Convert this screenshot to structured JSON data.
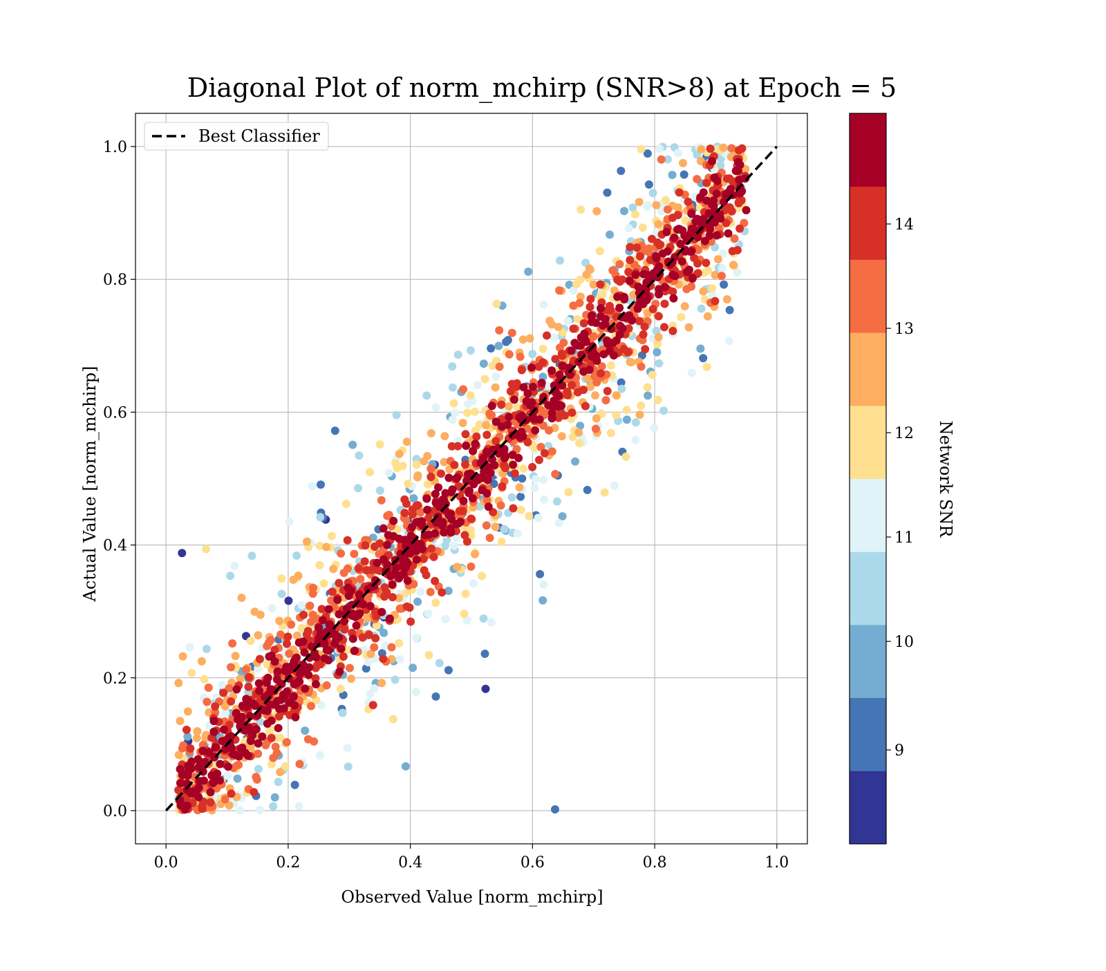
{
  "chart_data": {
    "type": "scatter",
    "title": "Diagonal Plot of norm_mchirp (SNR>8) at Epoch = 5",
    "xlabel": "Observed Value [norm_mchirp]",
    "ylabel": "Actual Value [norm_mchirp]",
    "xlim": [
      -0.05,
      1.05
    ],
    "ylim": [
      -0.05,
      1.05
    ],
    "xticks": [
      "0.0",
      "0.2",
      "0.4",
      "0.6",
      "0.8",
      "1.0"
    ],
    "yticks": [
      "0.0",
      "0.2",
      "0.4",
      "0.6",
      "0.8",
      "1.0"
    ],
    "grid": true,
    "legend": {
      "position": "top-left",
      "entries": [
        {
          "label": "Best Classifier",
          "style": "dashed",
          "color": "#000000"
        }
      ]
    },
    "reference_line": {
      "name": "Best Classifier",
      "x": [
        0.0,
        1.0
      ],
      "y": [
        0.0,
        1.0
      ]
    },
    "colorbar": {
      "label": "Network SNR",
      "range": [
        8,
        15
      ],
      "ticks": [
        "9",
        "10",
        "11",
        "12",
        "13",
        "14"
      ],
      "colors": [
        "#313695",
        "#4575b4",
        "#74add1",
        "#abd9e9",
        "#e0f3f8",
        "#fee090",
        "#fdae61",
        "#f46d43",
        "#d73027",
        "#a50026"
      ]
    },
    "series": [
      {
        "description_values": "dense cloud of points around y = x, high-SNR points concentrated near the diagonal",
        "x_range": [
          0.01,
          0.95
        ],
        "y_range": [
          0.0,
          1.0
        ],
        "color_by": "Network SNR"
      }
    ]
  }
}
